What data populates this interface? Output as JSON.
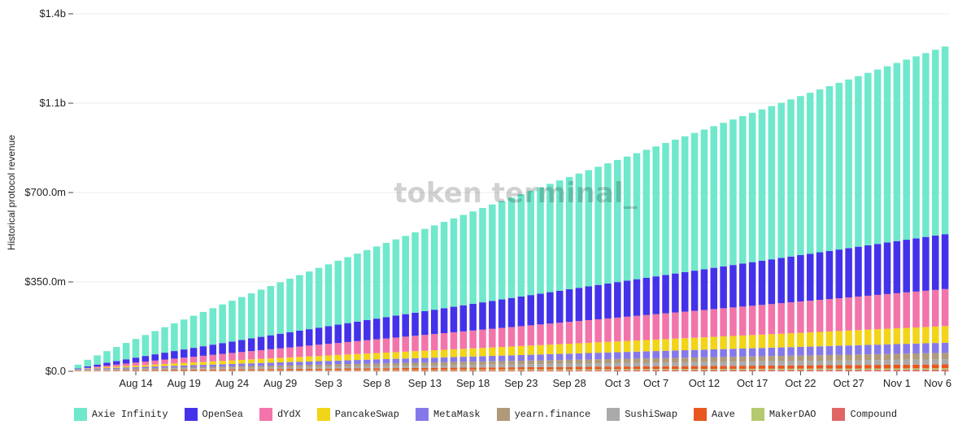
{
  "watermark": "token terminal_",
  "chart_data": {
    "type": "bar",
    "stacked": true,
    "ylabel": "Historical protocol revenue",
    "ylim": [
      0,
      1400000000
    ],
    "y_ticks": [
      {
        "value": 0,
        "label": "$0.0"
      },
      {
        "value": 350000000,
        "label": "$350.0m"
      },
      {
        "value": 700000000,
        "label": "$700.0m"
      },
      {
        "value": 1050000000,
        "label": "$1.1b"
      },
      {
        "value": 1400000000,
        "label": "$1.4b"
      }
    ],
    "grid": true,
    "legend_position": "bottom",
    "x_start": "2021-08-08",
    "x_end": "2021-11-06",
    "x_ticks": [
      {
        "date": "2021-08-14",
        "label": "Aug 14"
      },
      {
        "date": "2021-08-19",
        "label": "Aug 19"
      },
      {
        "date": "2021-08-24",
        "label": "Aug 24"
      },
      {
        "date": "2021-08-29",
        "label": "Aug 29"
      },
      {
        "date": "2021-09-03",
        "label": "Sep 3"
      },
      {
        "date": "2021-09-08",
        "label": "Sep 8"
      },
      {
        "date": "2021-09-13",
        "label": "Sep 13"
      },
      {
        "date": "2021-09-18",
        "label": "Sep 18"
      },
      {
        "date": "2021-09-23",
        "label": "Sep 23"
      },
      {
        "date": "2021-09-28",
        "label": "Sep 28"
      },
      {
        "date": "2021-10-03",
        "label": "Oct 3"
      },
      {
        "date": "2021-10-07",
        "label": "Oct 7"
      },
      {
        "date": "2021-10-12",
        "label": "Oct 12"
      },
      {
        "date": "2021-10-17",
        "label": "Oct 17"
      },
      {
        "date": "2021-10-22",
        "label": "Oct 22"
      },
      {
        "date": "2021-10-27",
        "label": "Oct 27"
      },
      {
        "date": "2021-11-01",
        "label": "Nov 1"
      },
      {
        "date": "2021-11-06",
        "label": "Nov 6"
      }
    ],
    "series": [
      {
        "name": "Compound",
        "color": "#e06666",
        "start": 1000000,
        "end": 6000000
      },
      {
        "name": "MakerDAO",
        "color": "#b5c96f",
        "start": 1000000,
        "end": 6000000
      },
      {
        "name": "Aave",
        "color": "#e8571f",
        "start": 1000000,
        "end": 15000000
      },
      {
        "name": "SushiSwap",
        "color": "#aaaaaa",
        "start": 2000000,
        "end": 20000000
      },
      {
        "name": "yearn.finance",
        "color": "#b09a7a",
        "start": 1000000,
        "end": 25000000
      },
      {
        "name": "MetaMask",
        "color": "#8579ea",
        "start": 2000000,
        "end": 40000000
      },
      {
        "name": "PancakeSwap",
        "color": "#f2d418",
        "start": 1000000,
        "end": 65000000
      },
      {
        "name": "dYdX",
        "color": "#f274aa",
        "start": 0,
        "end": 145000000
      },
      {
        "name": "OpenSea",
        "color": "#4332ea",
        "start": 2000000,
        "end": 215000000
      },
      {
        "name": "Axie Infinity",
        "color": "#6fe8cc",
        "start": 15000000,
        "end": 735000000
      }
    ]
  },
  "legend": [
    {
      "label": "Axie Infinity",
      "color": "#6fe8cc"
    },
    {
      "label": "OpenSea",
      "color": "#4332ea"
    },
    {
      "label": "dYdX",
      "color": "#f274aa"
    },
    {
      "label": "PancakeSwap",
      "color": "#f2d418"
    },
    {
      "label": "MetaMask",
      "color": "#8579ea"
    },
    {
      "label": "yearn.finance",
      "color": "#b09a7a"
    },
    {
      "label": "SushiSwap",
      "color": "#aaaaaa"
    },
    {
      "label": "Aave",
      "color": "#e8571f"
    },
    {
      "label": "MakerDAO",
      "color": "#b5c96f"
    },
    {
      "label": "Compound",
      "color": "#e06666"
    }
  ]
}
